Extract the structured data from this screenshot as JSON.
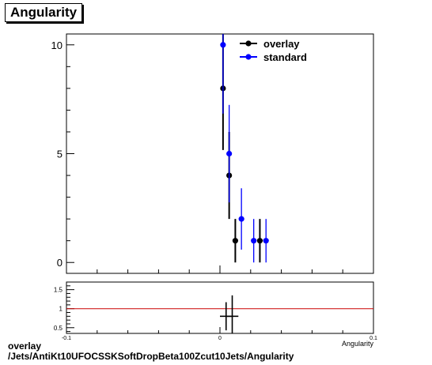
{
  "title": "Angularity",
  "footer": {
    "line1": "overlay",
    "line2": "/Jets/AntiKt10UFOCSSKSoftDropBeta100Zcut10Jets/Angularity"
  },
  "colors": {
    "overlay": "#000000",
    "standard": "#0000ff",
    "ratio_line": "#cc0000"
  },
  "chart_data": [
    {
      "type": "scatter",
      "title": "Angularity",
      "xlabel": "Angularity",
      "ylabel": "",
      "xlim": [
        -0.1,
        0.1
      ],
      "ylim": [
        -0.5,
        10.5
      ],
      "y_ticks": [
        "0",
        "5",
        "10"
      ],
      "legend": {
        "position": "top-right",
        "entries": [
          "overlay",
          "standard"
        ]
      },
      "series": [
        {
          "name": "overlay",
          "color": "#000000",
          "points": [
            {
              "x": 0.002,
              "y": 8,
              "yerr": 2.83
            },
            {
              "x": 0.006,
              "y": 4,
              "yerr": 2.0
            },
            {
              "x": 0.01,
              "y": 1,
              "yerr": 1.0
            },
            {
              "x": 0.026,
              "y": 1,
              "yerr": 1.0
            }
          ]
        },
        {
          "name": "standard",
          "color": "#0000ff",
          "points": [
            {
              "x": 0.002,
              "y": 10,
              "yerr": 3.16
            },
            {
              "x": 0.006,
              "y": 5,
              "yerr": 2.24
            },
            {
              "x": 0.014,
              "y": 2,
              "yerr": 1.41
            },
            {
              "x": 0.022,
              "y": 1,
              "yerr": 1.0
            },
            {
              "x": 0.03,
              "y": 1,
              "yerr": 1.0
            }
          ]
        }
      ]
    },
    {
      "type": "scatter",
      "title": "",
      "xlabel": "Angularity",
      "ylabel": "",
      "xlim": [
        -0.1,
        0.1
      ],
      "ylim": [
        0.35,
        1.7
      ],
      "x_ticks": [
        "-0.1",
        "0",
        "0.1"
      ],
      "y_ticks": [
        "0.5",
        "1",
        "1.5"
      ],
      "reference_line": 1,
      "points": [
        {
          "x": 0.004,
          "y": 0.8,
          "xerr": 0.004,
          "yerr": 0.37
        },
        {
          "x": 0.008,
          "y": 0.8,
          "xerr": 0.004,
          "yerr": 0.55
        }
      ]
    }
  ]
}
